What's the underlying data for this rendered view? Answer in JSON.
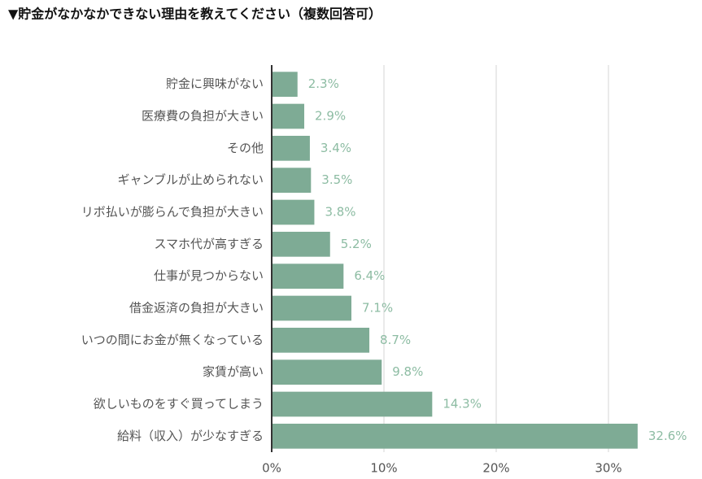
{
  "chart_data": {
    "type": "bar",
    "orientation": "horizontal",
    "title": "▼貯金がなかなかできない理由を教えてください（複数回答可）",
    "categories": [
      "貯金に興味がない",
      "医療費の負担が大きい",
      "その他",
      "ギャンブルが止められない",
      "リボ払いが膨らんで負担が大きい",
      "スマホ代が高すぎる",
      "仕事が見つからない",
      "借金返済の負担が大きい",
      "いつの間にお金が無くなっている",
      "家賃が高い",
      "欲しいものをすぐ買ってしまう",
      "給料（収入）が少なすぎる"
    ],
    "values": [
      2.3,
      2.9,
      3.4,
      3.5,
      3.8,
      5.2,
      6.4,
      7.1,
      8.7,
      9.8,
      14.3,
      32.6
    ],
    "value_labels": [
      "2.3%",
      "2.9%",
      "3.4%",
      "3.5%",
      "3.8%",
      "5.2%",
      "6.4%",
      "7.1%",
      "8.7%",
      "9.8%",
      "14.3%",
      "32.6%"
    ],
    "color": "#7eab95",
    "xlim": [
      0,
      35
    ],
    "xticks": [
      {
        "value": 0,
        "label": "0%"
      },
      {
        "value": 10,
        "label": "10%"
      },
      {
        "value": 20,
        "label": "20%"
      },
      {
        "value": 30,
        "label": "30%"
      }
    ],
    "grid": true
  }
}
